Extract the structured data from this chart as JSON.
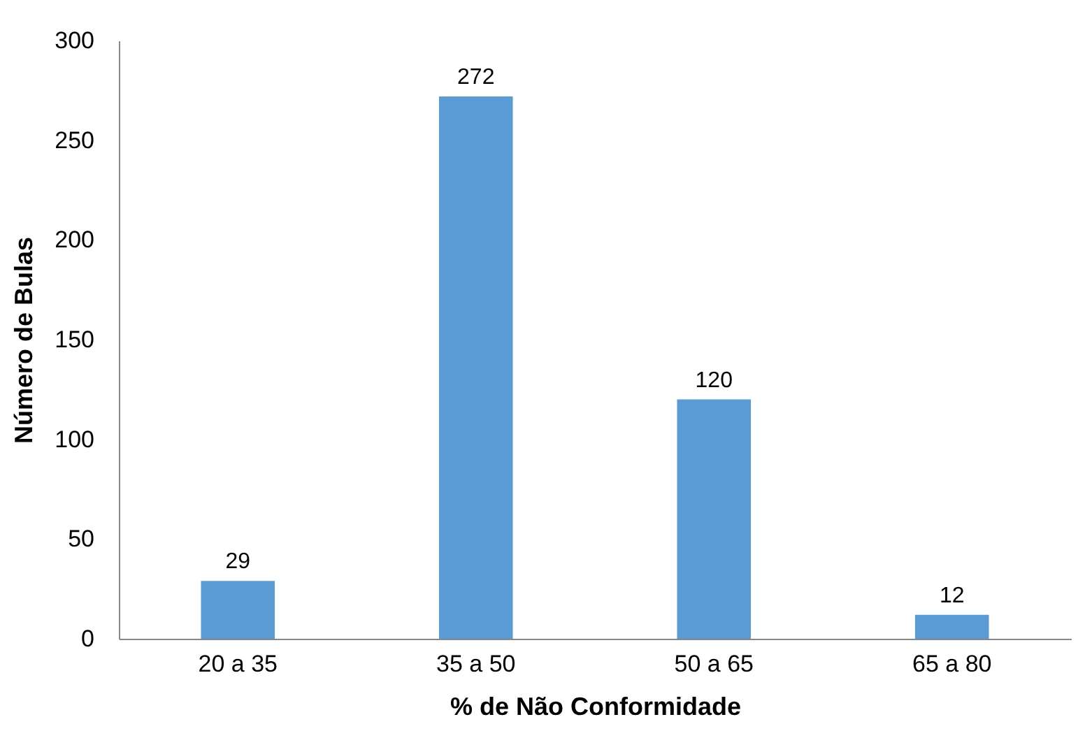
{
  "chart_data": {
    "type": "bar",
    "xlabel": "% de Não Conformidade",
    "ylabel": "Número de Bulas",
    "categories": [
      "20 a 35",
      "35 a 50",
      "50 a 65",
      "65 a 80"
    ],
    "values": [
      29,
      272,
      120,
      12
    ],
    "color": "#5b9bd5",
    "ylim": [
      0,
      300
    ],
    "yticks": [
      0,
      50,
      100,
      150,
      200,
      250,
      300
    ],
    "grid": false,
    "data_labels": true
  }
}
